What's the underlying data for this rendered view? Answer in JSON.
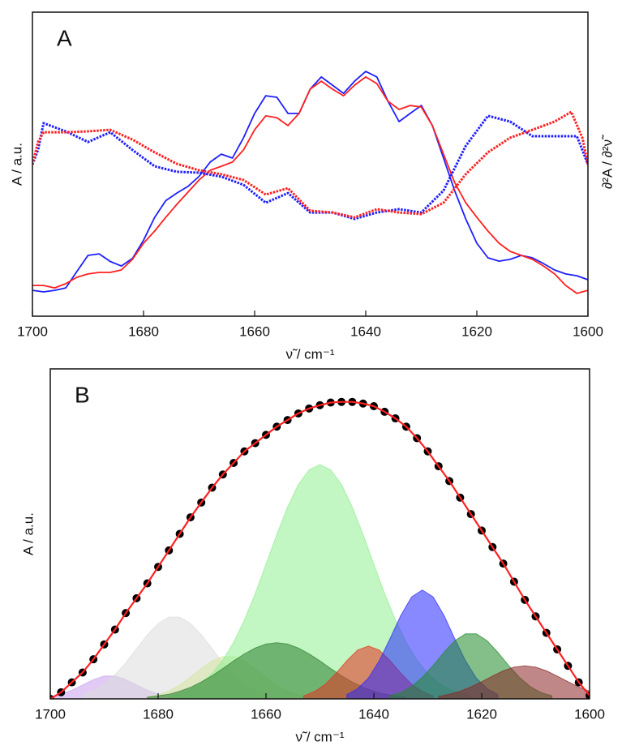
{
  "chart_data": [
    {
      "type": "line",
      "label": "A",
      "xlabel": "ν̃ / cm⁻¹",
      "ylabel": "A / a.u.",
      "y2label": "∂²A / ∂²ν̃",
      "xlim": [
        1700,
        1600
      ],
      "xticks": [
        1700,
        1680,
        1660,
        1640,
        1620,
        1600
      ],
      "ylim": [
        0,
        100
      ],
      "series": [
        {
          "color": "#1f1fff",
          "linestyle": "solid",
          "x": [
            1700,
            1698,
            1696,
            1694,
            1692,
            1690,
            1688,
            1686,
            1684,
            1682,
            1680,
            1678,
            1676,
            1674,
            1672,
            1670,
            1668,
            1666,
            1664,
            1662,
            1660,
            1658,
            1656,
            1654,
            1652,
            1650,
            1648,
            1646,
            1644,
            1642,
            1640,
            1638,
            1636,
            1634,
            1632,
            1630,
            1628,
            1626,
            1624,
            1622,
            1620,
            1618,
            1616,
            1614,
            1612,
            1610,
            1608,
            1606,
            1604,
            1602,
            1600
          ],
          "values": [
            8.5,
            8,
            8.5,
            9.3,
            14.7,
            20,
            20.5,
            18,
            16.5,
            19,
            25,
            32.5,
            38,
            40.5,
            42.7,
            46,
            50.7,
            53.3,
            52,
            58.7,
            66.7,
            72.5,
            72,
            66.7,
            66.7,
            74.7,
            78.7,
            76,
            73.3,
            77.3,
            80.5,
            78.7,
            70.7,
            64,
            66.7,
            69.3,
            62.7,
            52,
            41.3,
            32,
            24,
            19.2,
            18.1,
            18.7,
            20,
            19.2,
            17.3,
            15.2,
            13.9,
            13.3,
            12
          ]
        },
        {
          "color": "#ff2020",
          "linestyle": "solid",
          "x": [
            1700,
            1698,
            1696,
            1694,
            1692,
            1690,
            1688,
            1686,
            1684,
            1682,
            1680,
            1678,
            1676,
            1674,
            1672,
            1670,
            1668,
            1666,
            1664,
            1662,
            1660,
            1658,
            1656,
            1654,
            1652,
            1650,
            1648,
            1646,
            1644,
            1642,
            1640,
            1638,
            1636,
            1634,
            1632,
            1630,
            1628,
            1626,
            1624,
            1622,
            1620,
            1618,
            1616,
            1614,
            1612,
            1610,
            1608,
            1606,
            1604,
            1602,
            1600
          ],
          "values": [
            10.1,
            10.1,
            9.3,
            10.7,
            12.8,
            13.9,
            14.4,
            14.4,
            15.2,
            18.7,
            24,
            28,
            32.5,
            36.8,
            40.8,
            44.8,
            48,
            49.3,
            50.7,
            54.7,
            61.3,
            65.9,
            65.3,
            62.7,
            66.7,
            74.7,
            77.3,
            74.7,
            72.5,
            76,
            78.7,
            76.5,
            70.7,
            68,
            69.3,
            68.8,
            62.7,
            53.3,
            44,
            37.3,
            32.5,
            28,
            24,
            21.3,
            20,
            18.7,
            16.5,
            13.9,
            10.1,
            7.5,
            8.5
          ]
        },
        {
          "color": "#1f1fff",
          "linestyle": "dotted",
          "x": [
            1700,
            1699,
            1698,
            1694,
            1690,
            1686,
            1682,
            1678,
            1674,
            1670,
            1666,
            1662,
            1658,
            1654,
            1650,
            1646,
            1642,
            1638,
            1634,
            1630,
            1626,
            1622,
            1618,
            1614,
            1610,
            1606,
            1602,
            1601,
            1600
          ],
          "values": [
            49.9,
            54.7,
            63.5,
            60.8,
            57.3,
            60.5,
            54.7,
            49.3,
            47.5,
            47.2,
            45.9,
            43.2,
            37.3,
            40.5,
            34.1,
            34.1,
            32,
            34.1,
            35.2,
            34.1,
            41.3,
            56,
            65.9,
            64,
            59.2,
            59.2,
            59.2,
            54.7,
            49.9
          ]
        },
        {
          "color": "#ff2020",
          "linestyle": "dotted",
          "x": [
            1700,
            1699,
            1698,
            1694,
            1690,
            1686,
            1682,
            1678,
            1674,
            1670,
            1666,
            1662,
            1658,
            1654,
            1650,
            1646,
            1642,
            1638,
            1634,
            1630,
            1626,
            1622,
            1618,
            1614,
            1610,
            1606,
            1603,
            1601,
            1600
          ],
          "values": [
            49.9,
            57.3,
            60.5,
            60.5,
            60.8,
            61.3,
            58.1,
            53.9,
            50.1,
            48,
            46.7,
            44.8,
            40,
            42.1,
            34.7,
            34.1,
            32.5,
            35.2,
            34.1,
            33.6,
            37.3,
            46.7,
            53.9,
            58.7,
            61.3,
            64,
            67.2,
            58.7,
            49.9
          ]
        }
      ]
    },
    {
      "type": "area",
      "label": "B",
      "xlabel": "ν̃ / cm⁻¹",
      "ylabel": "A / a.u.",
      "xlim": [
        1700,
        1600
      ],
      "xticks": [
        1700,
        1680,
        1660,
        1640,
        1620,
        1600
      ],
      "ylim": [
        0,
        100
      ],
      "series": [
        {
          "color": "#c9a0ee",
          "style": "area",
          "x": [
            1700,
            1698,
            1696,
            1694,
            1692,
            1690,
            1688,
            1686,
            1684,
            1682,
            1680,
            1678
          ],
          "values": [
            0.6,
            1.4,
            2.6,
            4.2,
            5.8,
            6.9,
            6.9,
            5.8,
            4.2,
            2.6,
            1.4,
            0.6
          ]
        },
        {
          "color": "#dcdcdc",
          "style": "area",
          "x": [
            1694,
            1692,
            1690,
            1688,
            1686,
            1684,
            1682,
            1680,
            1678,
            1676,
            1674,
            1672,
            1670,
            1668,
            1666,
            1664,
            1662,
            1660
          ],
          "values": [
            1.3,
            2.5,
            4.5,
            7.3,
            10.9,
            15.2,
            19.4,
            22.8,
            24.8,
            24.8,
            22.8,
            19.4,
            15.2,
            10.9,
            7.3,
            4.5,
            2.5,
            1.3
          ]
        },
        {
          "color": "#d4e6a0",
          "style": "area",
          "x": [
            1682,
            1680,
            1678,
            1676,
            1674,
            1672,
            1670,
            1668,
            1666,
            1664,
            1662,
            1660,
            1658,
            1656,
            1654,
            1652
          ],
          "values": [
            0.6,
            1.2,
            2.4,
            4.2,
            6.6,
            9.2,
            11.5,
            12.8,
            12.8,
            11.5,
            9.2,
            6.6,
            4.2,
            2.4,
            1.2,
            0.6
          ]
        },
        {
          "color": "#90ee90",
          "style": "area",
          "x": [
            1678,
            1676,
            1674,
            1672,
            1670,
            1668,
            1666,
            1664,
            1662,
            1660,
            1658,
            1656,
            1654,
            1652,
            1650,
            1648,
            1646,
            1644,
            1642,
            1640,
            1638,
            1636,
            1634,
            1632,
            1630,
            1628,
            1626,
            1624,
            1622
          ],
          "values": [
            0.9,
            1.7,
            2.9,
            4.8,
            7.7,
            11.7,
            17.1,
            23.9,
            31.9,
            40.8,
            49.8,
            58.1,
            65,
            69.4,
            71,
            69.4,
            65,
            58.1,
            49.8,
            40.8,
            31.9,
            23.9,
            17.1,
            11.7,
            7.7,
            4.8,
            2.9,
            1.7,
            0.9
          ]
        },
        {
          "color": "#2e7d32",
          "style": "area",
          "x": [
            1682,
            1680,
            1678,
            1676,
            1674,
            1672,
            1670,
            1668,
            1666,
            1664,
            1662,
            1660,
            1658,
            1656,
            1654,
            1652,
            1650,
            1648,
            1646,
            1644,
            1642,
            1640,
            1638,
            1636,
            1634
          ],
          "values": [
            0.5,
            0.9,
            1.4,
            2.3,
            3.5,
            5.1,
            7,
            9.2,
            11.5,
            13.6,
            15.4,
            16.6,
            17,
            16.6,
            15.4,
            13.6,
            11.5,
            9.2,
            7,
            5.1,
            3.5,
            2.3,
            1.4,
            0.9,
            0.5
          ]
        },
        {
          "color": "#e53020",
          "style": "area",
          "x": [
            1653,
            1651,
            1649,
            1647,
            1645,
            1643,
            1641,
            1639,
            1637,
            1635,
            1633,
            1631,
            1629
          ],
          "values": [
            0.9,
            2.2,
            4.4,
            7.8,
            11.6,
            14.8,
            16,
            14.8,
            11.6,
            7.8,
            4.4,
            2.2,
            0.9
          ]
        },
        {
          "color": "#2828ff",
          "style": "area",
          "x": [
            1645,
            1643,
            1641,
            1639,
            1637,
            1635,
            1633,
            1631,
            1629,
            1627,
            1625,
            1623,
            1621,
            1619,
            1617
          ],
          "values": [
            1.3,
            3.1,
            6.3,
            11.5,
            18.2,
            25.3,
            30.9,
            33,
            30.9,
            25.3,
            18.2,
            11.5,
            6.3,
            3.1,
            1.3
          ]
        },
        {
          "color": "#1f8a2a",
          "style": "area",
          "x": [
            1637,
            1635,
            1633,
            1631,
            1629,
            1627,
            1625,
            1623,
            1621,
            1619,
            1617,
            1615,
            1613,
            1611,
            1609,
            1607
          ],
          "values": [
            0.9,
            1.9,
            3.7,
            6.5,
            10.1,
            14.1,
            17.6,
            19.7,
            19.7,
            17.6,
            14.1,
            10.1,
            6.5,
            3.7,
            1.9,
            0.9
          ]
        },
        {
          "color": "#8b2525",
          "style": "area",
          "x": [
            1628,
            1626,
            1624,
            1622,
            1620,
            1618,
            1616,
            1614,
            1612,
            1610,
            1608,
            1606,
            1604,
            1602,
            1600
          ],
          "values": [
            0.7,
            1.4,
            2.3,
            3.6,
            5.2,
            6.9,
            8.5,
            9.6,
            10,
            9.6,
            8.5,
            6.9,
            5.2,
            3.6,
            2.3
          ]
        },
        {
          "color": "#000000",
          "style": "dots",
          "x": [
            1700,
            1698,
            1696,
            1694,
            1692,
            1690,
            1688,
            1686,
            1684,
            1682,
            1680,
            1678,
            1676,
            1674,
            1672,
            1670,
            1668,
            1666,
            1664,
            1662,
            1660,
            1658,
            1656,
            1654,
            1652,
            1650,
            1648,
            1646,
            1644,
            1642,
            1640,
            1638,
            1636,
            1634,
            1632,
            1630,
            1628,
            1626,
            1624,
            1622,
            1620,
            1618,
            1616,
            1614,
            1612,
            1610,
            1608,
            1606,
            1604,
            1602,
            1600
          ],
          "values": [
            0,
            2,
            5,
            8,
            12,
            16.5,
            21,
            26,
            30.5,
            35,
            40,
            45,
            50,
            55,
            59.5,
            64,
            68,
            71.5,
            75,
            77.5,
            80,
            82.5,
            84.5,
            86.5,
            88,
            89,
            89.8,
            90,
            90,
            89.5,
            88.7,
            87,
            85,
            82.5,
            79,
            75,
            70.5,
            66,
            61,
            56,
            51,
            46,
            41,
            35.5,
            30,
            25,
            20,
            15,
            10,
            5,
            1
          ]
        },
        {
          "color": "#ff2020",
          "style": "line",
          "x": [
            1700,
            1698,
            1696,
            1694,
            1692,
            1690,
            1688,
            1686,
            1684,
            1682,
            1680,
            1678,
            1676,
            1674,
            1672,
            1670,
            1668,
            1666,
            1664,
            1662,
            1660,
            1658,
            1656,
            1654,
            1652,
            1650,
            1648,
            1646,
            1644,
            1642,
            1640,
            1638,
            1636,
            1634,
            1632,
            1630,
            1628,
            1626,
            1624,
            1622,
            1620,
            1618,
            1616,
            1614,
            1612,
            1610,
            1608,
            1606,
            1604,
            1602,
            1600
          ],
          "values": [
            0,
            2,
            5,
            8,
            12,
            16.5,
            21,
            26,
            30.5,
            35,
            40,
            45,
            50,
            55,
            59.5,
            64,
            68,
            71.5,
            75,
            77.5,
            80,
            82.5,
            84.5,
            86.5,
            88,
            89,
            89.8,
            90,
            90,
            89.5,
            88.7,
            87,
            85,
            82.5,
            79,
            75,
            70.5,
            66,
            61,
            56,
            51,
            46,
            41,
            35.5,
            30,
            25,
            20,
            15,
            10,
            5,
            1
          ]
        }
      ]
    }
  ]
}
